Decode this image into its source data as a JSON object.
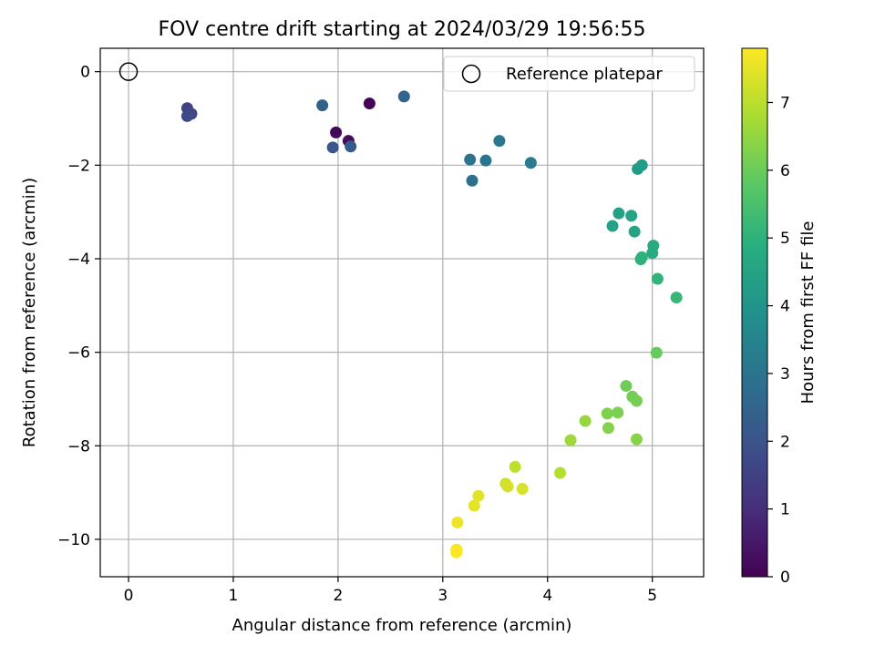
{
  "chart_data": {
    "type": "scatter",
    "title": "FOV centre drift starting at 2024/03/29 19:56:55",
    "xlabel": "Angular distance from reference (arcmin)",
    "ylabel": "Rotation from reference (arcmin)",
    "xlim": [
      -0.27,
      5.49
    ],
    "ylim": [
      -10.8,
      0.5
    ],
    "xticks": [
      0,
      1,
      2,
      3,
      4,
      5
    ],
    "yticks": [
      0,
      -2,
      -4,
      -6,
      -8,
      -10
    ],
    "xtick_labels": [
      "0",
      "1",
      "2",
      "3",
      "4",
      "5"
    ],
    "ytick_labels": [
      "0",
      "−2",
      "−4",
      "−6",
      "−8",
      "−10"
    ],
    "grid": true,
    "legend": {
      "location": "upper right",
      "label": "Reference platepar"
    },
    "reference_point": {
      "x": 0,
      "y": 0
    },
    "colorbar": {
      "label": "Hours from first FF file",
      "colormap": "viridis",
      "range": [
        0,
        7.8
      ],
      "ticks": [
        0,
        1,
        2,
        3,
        4,
        5,
        6,
        7
      ],
      "tick_labels": [
        "0",
        "1",
        "2",
        "3",
        "4",
        "5",
        "6",
        "7"
      ]
    },
    "series": [
      {
        "x": [
          2.3,
          1.98,
          2.1,
          0.56,
          0.6,
          0.56,
          1.95,
          2.12,
          1.85,
          2.63,
          3.28,
          3.26,
          3.41,
          3.54,
          3.84,
          4.86,
          4.9,
          4.68,
          4.62,
          4.8,
          4.83,
          5.01,
          5.0,
          4.89,
          4.9,
          5.05,
          5.23,
          5.04,
          4.75,
          4.81,
          4.85,
          4.67,
          4.57,
          4.58,
          4.85,
          4.36,
          4.22,
          4.12,
          3.69,
          3.6,
          3.62,
          3.76,
          3.34,
          3.3,
          3.14,
          3.13,
          3.13
        ],
        "y": [
          -0.68,
          -1.3,
          -1.48,
          -0.78,
          -0.9,
          -0.95,
          -1.62,
          -1.6,
          -0.72,
          -0.53,
          -2.33,
          -1.88,
          -1.9,
          -1.48,
          -1.95,
          -2.08,
          -2.0,
          -3.03,
          -3.3,
          -3.08,
          -3.42,
          -3.72,
          -3.88,
          -4.01,
          -3.97,
          -4.43,
          -4.83,
          -6.01,
          -6.72,
          -6.95,
          -7.04,
          -7.29,
          -7.31,
          -7.62,
          -7.86,
          -7.47,
          -7.88,
          -8.58,
          -8.45,
          -8.81,
          -8.87,
          -8.92,
          -9.07,
          -9.28,
          -9.64,
          -10.22,
          -10.28
        ],
        "hours": [
          0.05,
          0.15,
          0.25,
          1.55,
          1.65,
          1.75,
          2.1,
          2.2,
          2.4,
          2.5,
          2.85,
          2.95,
          3.0,
          3.1,
          3.2,
          4.2,
          4.3,
          4.4,
          4.45,
          4.5,
          4.55,
          4.7,
          4.8,
          4.9,
          5.0,
          5.05,
          5.15,
          5.95,
          6.05,
          6.1,
          6.15,
          6.2,
          6.25,
          6.3,
          6.35,
          6.55,
          6.65,
          6.9,
          7.05,
          7.25,
          7.3,
          7.35,
          7.45,
          7.5,
          7.6,
          7.7,
          7.8
        ]
      }
    ]
  }
}
